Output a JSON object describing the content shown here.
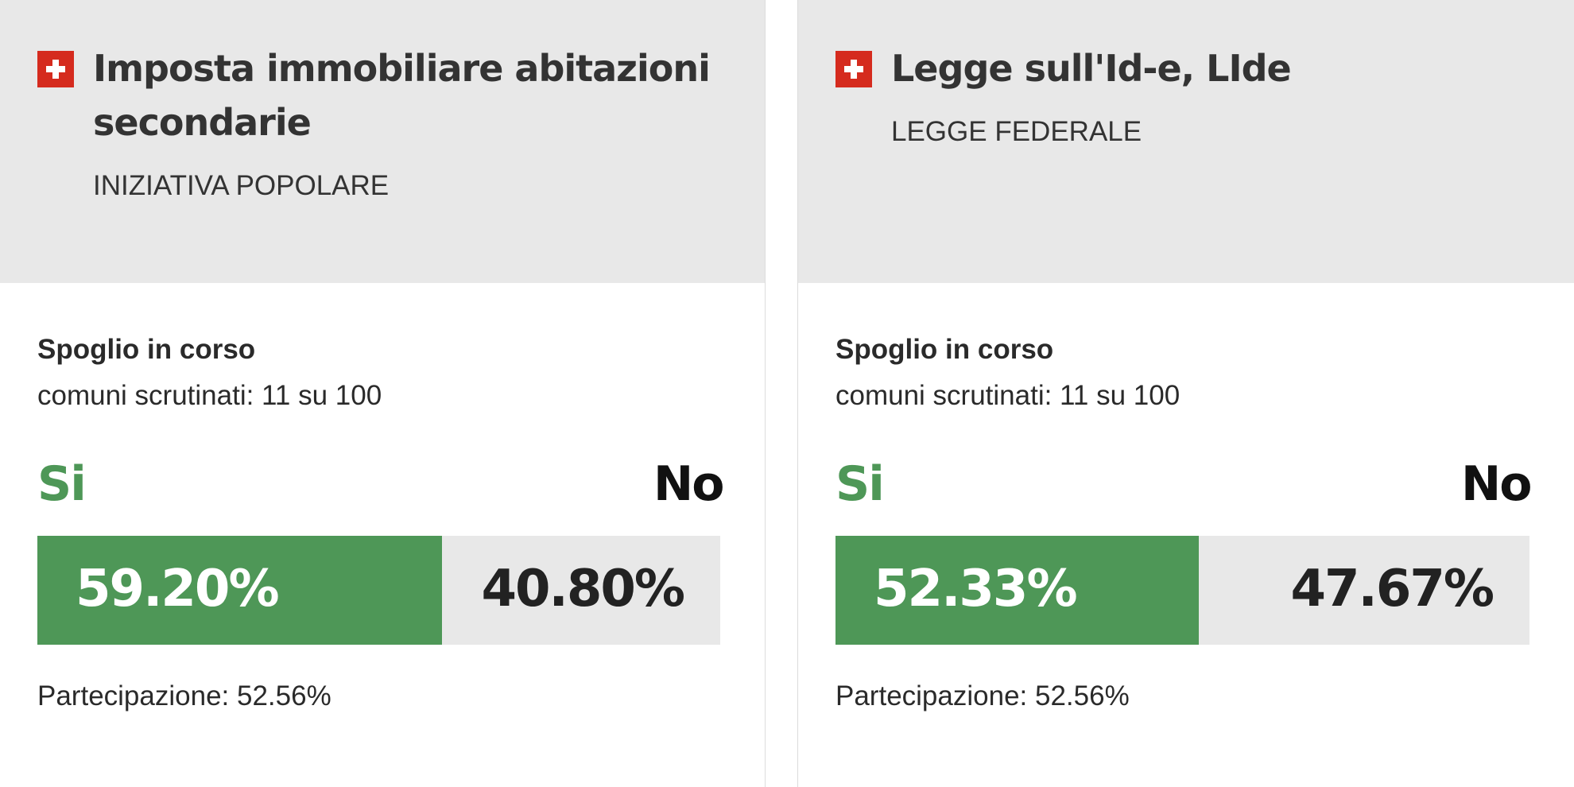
{
  "colors": {
    "yes": "#4e9757",
    "no_track": "#e8e8e8",
    "header_bg": "#e8e8e8",
    "flag": "#d52b1e"
  },
  "cards": [
    {
      "title": "Imposta immobiliare abitazioni secondarie",
      "subtitle": "INIZIATIVA POPOLARE",
      "status": "Spoglio in corso",
      "counted": "comuni scrutinati: 11 su 100",
      "yes_label": "Si",
      "no_label": "No",
      "yes_pct": "59.20%",
      "no_pct": "40.80%",
      "yes_share": 59.2,
      "turnout": "Partecipazione: 52.56%"
    },
    {
      "title": "Legge sull'Id-e, LIde",
      "subtitle": "LEGGE FEDERALE",
      "status": "Spoglio in corso",
      "counted": "comuni scrutinati: 11 su 100",
      "yes_label": "Si",
      "no_label": "No",
      "yes_pct": "52.33%",
      "no_pct": "47.67%",
      "yes_share": 52.33,
      "turnout": "Partecipazione: 52.56%"
    }
  ]
}
